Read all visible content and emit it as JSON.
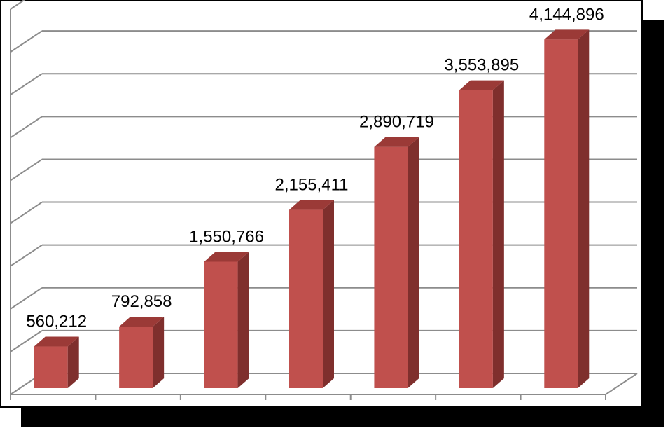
{
  "chart_data": {
    "type": "bar",
    "style": "3d-column",
    "categories": [
      "",
      "",
      "",
      "",
      "",
      "",
      ""
    ],
    "values": [
      560212,
      792858,
      1550766,
      2155411,
      2890719,
      3553895,
      4144896
    ],
    "value_labels": [
      "560,212",
      "792,858",
      "1,550,766",
      "2,155,411",
      "2,890,719",
      "3,553,895",
      "4,144,896"
    ],
    "title": "",
    "xlabel": "",
    "ylabel": "",
    "ylim": [
      0,
      4500000
    ],
    "y_gridline_step": 500000,
    "grid": true,
    "legend": "none",
    "bar_color": "#c0504d",
    "bar_side_color": "#7f2f2d",
    "bar_top_color": "#9b3a37",
    "gridline_color": "#8c8c8c",
    "frame_shadow": true
  }
}
